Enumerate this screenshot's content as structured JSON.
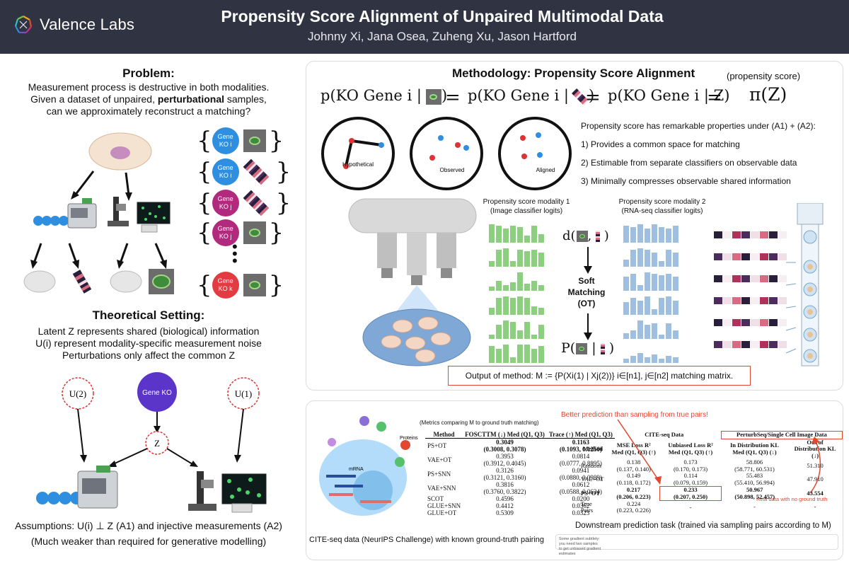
{
  "header": {
    "logo_text": "Valence Labs",
    "title": "Propensity Score Alignment of Unpaired Multimodal Data",
    "authors": "Johnny Xi, Jana Osea, Zuheng Xu, Jason Hartford"
  },
  "problem": {
    "heading": "Problem",
    "text1": "Measurement process is destructive in both modalities.",
    "text2a": "Given a dataset of unpaired, ",
    "text2b": "perturbational",
    "text2c": " samples,",
    "text3": "can we approximately reconstruct a matching?",
    "gene_chips": [
      {
        "top": "Gene",
        "bottom": "KO i",
        "color": "#2e8fe0",
        "item": "image"
      },
      {
        "top": "Gene",
        "bottom": "KO i",
        "color": "#2e8fe0",
        "item": "barcode"
      },
      {
        "top": "Gene",
        "bottom": "KO j",
        "color": "#b12a7e",
        "item": "barcode"
      },
      {
        "top": "Gene",
        "bottom": "KO j",
        "color": "#b12a7e",
        "item": "image"
      },
      {
        "top": "Gene",
        "bottom": "KO k",
        "color": "#e23b42",
        "item": "image"
      }
    ]
  },
  "theory": {
    "heading": "Theoretical Setting",
    "line1": "Latent Z represents shared (biological) information",
    "line2": "U(i) represent modality-specific measurement noise",
    "line3": "Perturbations only affect the common Z",
    "gene_ko": "Gene KO",
    "z": "Z",
    "u2": "U(2)",
    "u1": "U(1)",
    "assumption1": "Assumptions: U(i) ⊥ Z (A1) and injective measurements (A2)",
    "assumption2": "(Much weaker than required for generative modelling)"
  },
  "methodology": {
    "heading": "Methodology: Propensity Score Alignment",
    "propensity_label": "(propensity score)",
    "eq_term1": "p(KO Gene i |",
    "eq_term2": "p(KO Gene i |",
    "eq_term3": "p(KO Gene i | Z)",
    "eq_pi": "π(Z)",
    "circle_labels": [
      "Hypothetical",
      "Observed",
      "Aligned"
    ],
    "properties_intro": "Propensity score has remarkable properties under (A1) + (A2):",
    "properties": [
      "1)  Provides a common space for matching",
      "2)  Estimable from separate classifiers on observable data",
      "3)  Minimally compresses observable shared information"
    ],
    "mod1_title": "Propensity score modality 1",
    "mod1_sub": "(Image classifier logits)",
    "mod2_title": "Propensity score modality 2",
    "mod2_sub": "(RNA-seq classifier logits)",
    "soft_matching": [
      "Soft",
      "Matching",
      "(OT)"
    ],
    "d_label": "d(",
    "p_label": "P(",
    "output_text": "Output of method:  M := {P(Xi(1) | Xj(2))} i∈[n1], j∈[n2]  matching matrix."
  },
  "results": {
    "cite_caption": "CITE-seq data (NeurIPS Challenge) with known ground-truth pairing",
    "proteins_label": "Proteins",
    "mrna_label": "mRNA",
    "metrics_caption": "(Metrics comparing M to ground truth matching)",
    "table1": {
      "headers": [
        "Method",
        "FOSCTTM (↓) Med (Q1, Q3)",
        "Trace (↑) Med (Q1, Q3)"
      ],
      "rows": [
        [
          "PS+OT",
          "0.3049",
          "(0.3008, 0.3078)",
          "0.1163",
          "(0.1093, 0.1250)"
        ],
        [
          "VAE+OT",
          "0.3953",
          "(0.3912, 0.4045)",
          "0.0814",
          "(0.0777, 0.8895)"
        ],
        [
          "PS+SNN",
          "0.3126",
          "(0.3121, 0.3160)",
          "0.0941",
          "(0.0880, 0.0989)"
        ],
        [
          "VAE+SNN",
          "0.3816",
          "(0.3760, 0.3822)",
          "0.0612",
          "(0.0588, 0.0634)"
        ],
        [
          "SCOT",
          "0.4596",
          "",
          "0.0200",
          ""
        ],
        [
          "GLUE+SNN",
          "0.4412",
          "",
          "0.0362",
          ""
        ],
        [
          "GLUE+OT",
          "0.5309",
          "",
          "0.0323",
          ""
        ]
      ]
    },
    "better_note": "Better prediction than sampling from true pairs!",
    "real_data_note": "Real data with no ground truth",
    "table2": {
      "group1": "CITE-seq Data",
      "group2": "PerturbSeq/Single Cell Image Data",
      "headers": [
        "Method",
        "MSE Loss R² Med (Q1, Q3) (↑)",
        "Unbiased Loss R² Med (Q1, Q3) (↑)",
        "In Distribution KL Med (Q1, Q3) (↓)",
        "Out of Distribution KL (↓)"
      ],
      "rows": [
        [
          "Random",
          "0.138",
          "(0.137, 0.140)",
          "0.173",
          "(0.170, 0.173)",
          "58.806",
          "(58.771, 60.531)",
          "51.310"
        ],
        [
          "VAE+OT",
          "0.149",
          "(0.118, 0.172)",
          "0.114",
          "(0.079, 0.159)",
          "55.483",
          "(55.410, 56.994)",
          "47.910"
        ],
        [
          "PS+OT",
          "0.217",
          "(0.206, 0.223)",
          "0.233",
          "(0.207, 0.250)",
          "50.967",
          "(50.898, 52.457)",
          "43.554"
        ],
        [
          "True Pairs",
          "0.224",
          "(0.223, 0.226)",
          "-",
          "",
          "-",
          "",
          "-"
        ]
      ]
    },
    "downstream_caption": "Downstream prediction task (trained via sampling pairs according to M)",
    "fine_print": "Some gradient subtlety: you need two samples to get unbiased gradient estimates"
  }
}
